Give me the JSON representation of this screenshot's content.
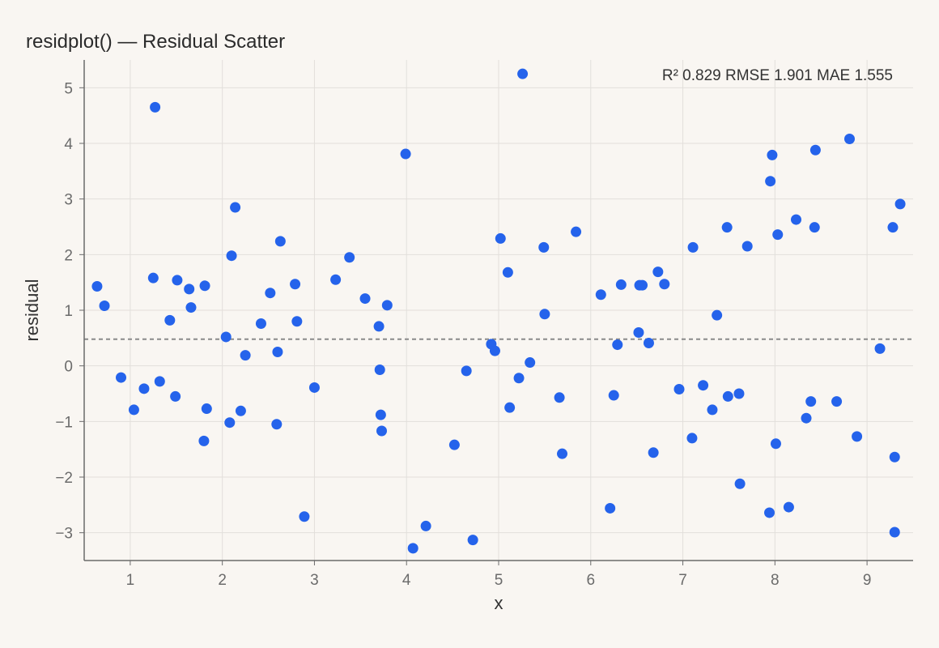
{
  "title": "residplot() — Residual Scatter",
  "metrics_text": "R² 0.829 RMSE 1.901 MAE 1.555",
  "chart_data": {
    "type": "scatter",
    "title": "residplot() — Residual Scatter",
    "xlabel": "x",
    "ylabel": "residual",
    "xlim": [
      0.5,
      9.5
    ],
    "ylim": [
      -3.5,
      5.5
    ],
    "xticks": [
      1,
      2,
      3,
      4,
      5,
      6,
      7,
      8,
      9
    ],
    "yticks": [
      -3,
      -2,
      -1,
      0,
      1,
      2,
      3,
      4,
      5
    ],
    "grid": true,
    "reference_line": {
      "y": 0.48,
      "style": "dashed",
      "color": "#8a8a8a"
    },
    "point_color": "#2563eb",
    "x": [
      0.64,
      0.72,
      0.9,
      1.04,
      1.15,
      1.25,
      1.27,
      1.32,
      1.43,
      1.49,
      1.51,
      1.64,
      1.66,
      1.8,
      1.81,
      1.83,
      2.04,
      2.08,
      2.1,
      2.14,
      2.2,
      2.25,
      2.42,
      2.52,
      2.59,
      2.6,
      2.63,
      2.79,
      2.81,
      2.89,
      3.0,
      3.23,
      3.38,
      3.55,
      3.7,
      3.71,
      3.72,
      3.73,
      3.79,
      3.99,
      4.07,
      4.21,
      4.52,
      4.65,
      4.72,
      4.92,
      4.96,
      5.02,
      5.1,
      5.12,
      5.22,
      5.26,
      5.34,
      5.49,
      5.5,
      5.66,
      5.69,
      5.84,
      6.11,
      6.21,
      6.25,
      6.29,
      6.33,
      6.52,
      6.53,
      6.56,
      6.63,
      6.68,
      6.73,
      6.8,
      6.96,
      7.1,
      7.11,
      7.22,
      7.32,
      7.37,
      7.48,
      7.49,
      7.61,
      7.62,
      7.7,
      7.94,
      7.95,
      7.97,
      8.01,
      8.03,
      8.15,
      8.23,
      8.34,
      8.39,
      8.43,
      8.44,
      8.67,
      8.81,
      8.89,
      9.14,
      9.28,
      9.3,
      9.3,
      9.36
    ],
    "y": [
      1.43,
      1.08,
      -0.21,
      -0.79,
      -0.41,
      1.58,
      4.65,
      -0.28,
      0.82,
      -0.55,
      1.54,
      1.38,
      1.05,
      -1.35,
      1.44,
      -0.77,
      0.52,
      -1.02,
      1.98,
      2.85,
      -0.81,
      0.19,
      0.76,
      1.31,
      -1.05,
      0.25,
      2.24,
      1.47,
      0.8,
      -2.71,
      -0.39,
      1.55,
      1.95,
      1.21,
      0.71,
      -0.07,
      -0.88,
      -1.17,
      1.09,
      3.81,
      -3.28,
      -2.88,
      -1.42,
      -0.09,
      -3.13,
      0.39,
      0.27,
      2.29,
      1.68,
      -0.75,
      -0.22,
      5.25,
      0.06,
      2.13,
      0.93,
      -0.57,
      -1.58,
      2.41,
      1.28,
      -2.56,
      -0.53,
      0.38,
      1.46,
      0.6,
      1.45,
      1.45,
      0.41,
      -1.56,
      1.69,
      1.47,
      -0.42,
      -1.3,
      2.13,
      -0.35,
      -0.79,
      0.91,
      2.49,
      -0.55,
      -0.5,
      -2.12,
      2.15,
      -2.64,
      3.32,
      3.79,
      -1.4,
      2.36,
      -2.54,
      2.63,
      -0.94,
      -0.64,
      2.49,
      3.88,
      -0.64,
      4.08,
      -1.27,
      0.31,
      2.49,
      -1.64,
      -2.99,
      2.91
    ]
  }
}
